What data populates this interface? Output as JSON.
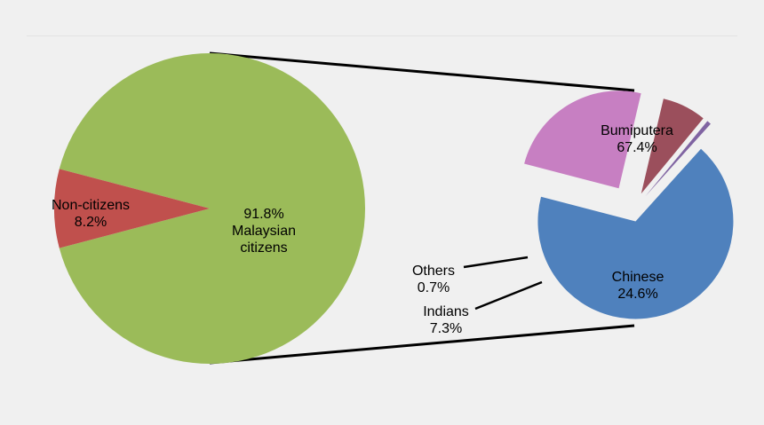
{
  "chart_data": [
    {
      "type": "pie",
      "series": [
        {
          "label_lines": [
            "91.8%",
            "Malaysian",
            "citizens"
          ],
          "value": 91.8,
          "color": "#9bbb59"
        },
        {
          "label_lines": [
            "Non-citizens",
            "8.2%"
          ],
          "value": 8.2,
          "color": "#c0504d"
        }
      ]
    },
    {
      "type": "pie",
      "exploded": true,
      "series": [
        {
          "label_lines": [
            "Bumiputera",
            "67.4%"
          ],
          "value": 67.4,
          "color": "#4f81bd"
        },
        {
          "label_lines": [
            "Chinese",
            "24.6%"
          ],
          "value": 24.6,
          "color": "#c77fc2"
        },
        {
          "label_lines": [
            "Indians",
            "7.3%"
          ],
          "value": 7.3,
          "color": "#9b4f5c"
        },
        {
          "label_lines": [
            "Others",
            "0.7%"
          ],
          "value": 0.7,
          "color": "#8064a2"
        }
      ]
    }
  ]
}
